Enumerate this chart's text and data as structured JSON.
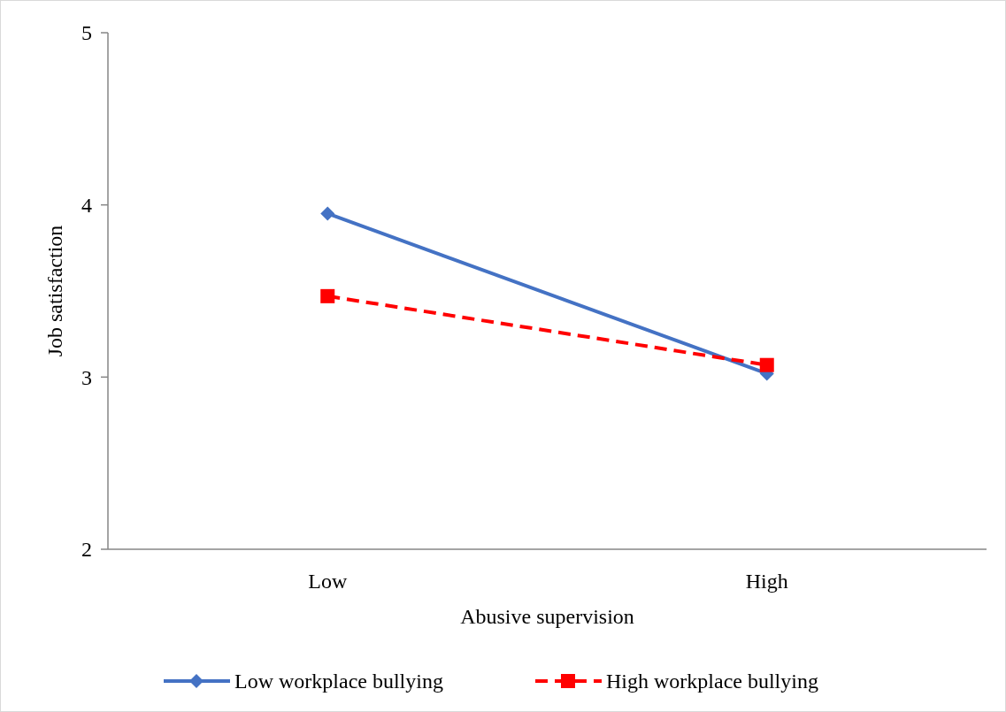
{
  "chart_data": {
    "type": "line",
    "xlabel": "Abusive supervision",
    "ylabel": "Job satisfaction",
    "categories": [
      "Low",
      "High"
    ],
    "ylim": [
      2,
      5
    ],
    "yticks": [
      2,
      3,
      4,
      5
    ],
    "legend": "bottom",
    "grid": false,
    "series": [
      {
        "name": "Low workplace bullying",
        "color": "#4472c4",
        "values": [
          3.95,
          3.02
        ],
        "marker": "diamond",
        "line_style": "solid"
      },
      {
        "name": "High workplace bullying",
        "color": "#ff0000",
        "values": [
          3.47,
          3.07
        ],
        "marker": "square",
        "line_style": "dashed"
      }
    ]
  }
}
